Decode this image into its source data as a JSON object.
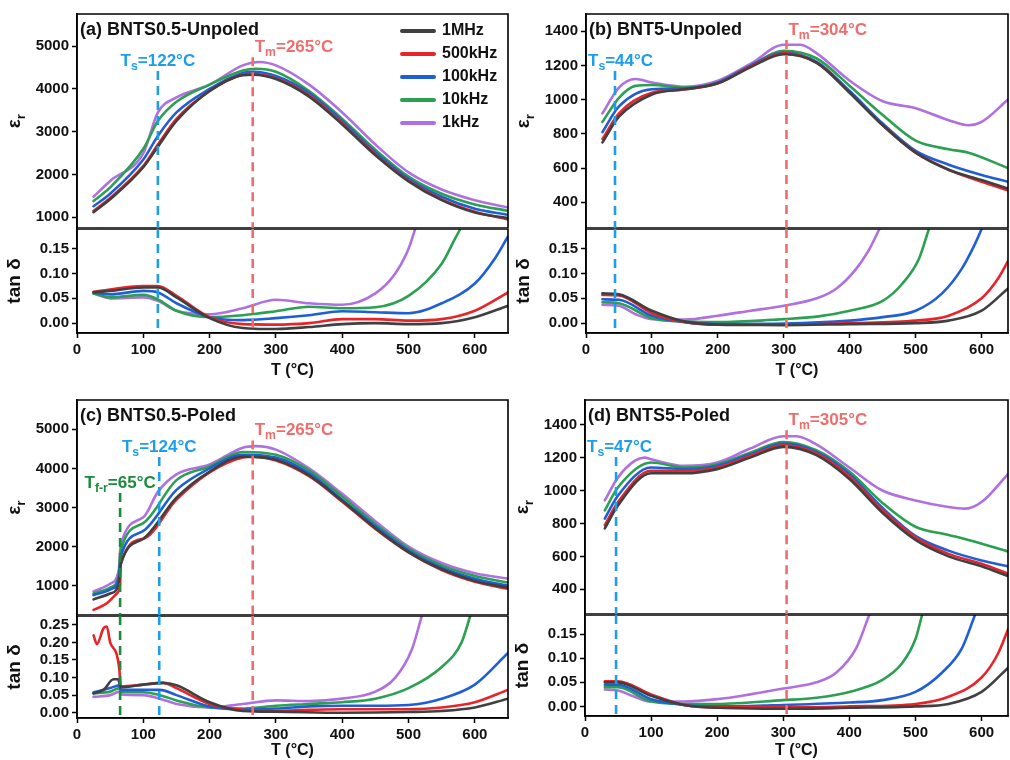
{
  "chart_data": [
    {
      "type": "line",
      "title": "(a) BNTS0.5-Unpoled",
      "ylabel": "ε$_{r}$",
      "xlim": [
        0,
        650
      ],
      "ylim": [
        750,
        5750
      ],
      "xticks": [
        0,
        100,
        200,
        300,
        400,
        500,
        600
      ],
      "yticks": [
        1000,
        2000,
        3000,
        4000,
        5000
      ],
      "tick_labels": "y",
      "marker": "none",
      "legend": "top right",
      "ref_lines": [
        {
          "axis": "x",
          "value": 122,
          "label": "T$_{s}$=122°C",
          "color": "#1e9ee8",
          "line_style": "dashed"
        },
        {
          "axis": "x",
          "value": 265,
          "label": "T$_{m}$=265°C",
          "color": "#ee6e6e",
          "line_style": "dashed"
        }
      ],
      "series": [
        {
          "name": "1MHz",
          "color": "#404040",
          "x": [
            25,
            50,
            100,
            122,
            150,
            200,
            250,
            265,
            300,
            350,
            400,
            450,
            500,
            550,
            600,
            650
          ],
          "values": [
            1120,
            1420,
            2170,
            2650,
            3250,
            3950,
            4320,
            4330,
            4230,
            3820,
            3170,
            2450,
            1840,
            1400,
            1110,
            980
          ]
        },
        {
          "name": "500kHz",
          "color": "#e8242a",
          "x": [
            25,
            50,
            100,
            122,
            150,
            200,
            250,
            265,
            300,
            350,
            400,
            450,
            500,
            550,
            600,
            650
          ],
          "values": [
            1150,
            1450,
            2200,
            2700,
            3300,
            3950,
            4330,
            4350,
            4250,
            3850,
            3200,
            2470,
            1860,
            1420,
            1130,
            950
          ]
        },
        {
          "name": "100kHz",
          "color": "#1f5fd6",
          "x": [
            25,
            50,
            100,
            122,
            150,
            200,
            250,
            265,
            300,
            350,
            400,
            450,
            500,
            550,
            600,
            650
          ],
          "values": [
            1260,
            1550,
            2350,
            2900,
            3450,
            4000,
            4370,
            4400,
            4300,
            3900,
            3250,
            2520,
            1900,
            1480,
            1200,
            1060
          ]
        },
        {
          "name": "10kHz",
          "color": "#2aa050",
          "x": [
            25,
            50,
            100,
            122,
            150,
            200,
            250,
            270,
            300,
            350,
            400,
            450,
            500,
            550,
            600,
            650
          ],
          "values": [
            1380,
            1700,
            2600,
            3250,
            3700,
            4100,
            4430,
            4470,
            4400,
            3950,
            3300,
            2580,
            1950,
            1550,
            1300,
            1150
          ]
        },
        {
          "name": "1kHz",
          "color": "#b070e0",
          "x": [
            25,
            50,
            100,
            122,
            150,
            200,
            250,
            275,
            300,
            350,
            400,
            450,
            500,
            550,
            600,
            650
          ],
          "values": [
            1480,
            1850,
            2500,
            3450,
            3800,
            4100,
            4550,
            4630,
            4550,
            4100,
            3450,
            2700,
            2050,
            1650,
            1400,
            1230
          ]
        }
      ]
    },
    {
      "type": "line",
      "xlabel": "T (°C)",
      "ylabel": "tan δ",
      "xlim": [
        0,
        650
      ],
      "ylim": [
        -0.02,
        0.19
      ],
      "xticks": [
        0,
        100,
        200,
        300,
        400,
        500,
        600
      ],
      "yticks": [
        {
          "value": 0,
          "label": "0.00"
        },
        {
          "value": 0.05,
          "label": "0.05"
        },
        {
          "value": 0.1,
          "label": "0.10"
        },
        {
          "value": 0.15,
          "label": "0.15"
        }
      ],
      "marker": "none",
      "ref_lines": [
        {
          "axis": "x",
          "value": 122,
          "color": "#1e9ee8",
          "line_style": "dashed"
        },
        {
          "axis": "x",
          "value": 265,
          "color": "#ee6e6e",
          "line_style": "dashed"
        }
      ],
      "series": [
        {
          "color": "#404040",
          "x": [
            25,
            50,
            100,
            122,
            150,
            200,
            250,
            300,
            350,
            400,
            450,
            500,
            550,
            600,
            650
          ],
          "values": [
            0.062,
            0.065,
            0.072,
            0.072,
            0.052,
            0.01,
            -0.01,
            -0.012,
            -0.008,
            -0.002,
            0.0,
            -0.002,
            0.0,
            0.012,
            0.035
          ]
        },
        {
          "color": "#e8242a",
          "x": [
            25,
            50,
            100,
            122,
            150,
            200,
            250,
            300,
            350,
            400,
            450,
            500,
            550,
            600,
            650
          ],
          "values": [
            0.063,
            0.068,
            0.075,
            0.075,
            0.055,
            0.012,
            -0.002,
            -0.003,
            0.0,
            0.008,
            0.008,
            0.005,
            0.008,
            0.025,
            0.062
          ]
        },
        {
          "color": "#1f5fd6",
          "x": [
            25,
            50,
            100,
            122,
            150,
            200,
            250,
            300,
            350,
            400,
            450,
            500,
            550,
            600,
            630,
            650
          ],
          "values": [
            0.062,
            0.058,
            0.065,
            0.062,
            0.04,
            0.012,
            0.006,
            0.01,
            0.016,
            0.024,
            0.022,
            0.02,
            0.04,
            0.08,
            0.13,
            0.175
          ]
        },
        {
          "color": "#2aa050",
          "x": [
            25,
            50,
            100,
            122,
            150,
            200,
            250,
            300,
            350,
            400,
            450,
            500,
            550,
            570,
            578
          ],
          "values": [
            0.06,
            0.052,
            0.057,
            0.048,
            0.025,
            0.012,
            0.016,
            0.024,
            0.033,
            0.03,
            0.032,
            0.055,
            0.12,
            0.17,
            0.19
          ]
        },
        {
          "color": "#b070e0",
          "x": [
            25,
            50,
            100,
            122,
            150,
            200,
            250,
            300,
            350,
            400,
            450,
            480,
            500,
            510
          ],
          "values": [
            0.06,
            0.05,
            0.052,
            0.045,
            0.025,
            0.018,
            0.03,
            0.047,
            0.04,
            0.037,
            0.06,
            0.1,
            0.15,
            0.19
          ]
        }
      ]
    },
    {
      "type": "line",
      "title": "(b) BNT5-Unpoled",
      "ylabel": "ε$_{r}$",
      "xlim": [
        0,
        640
      ],
      "ylim": [
        250,
        1500
      ],
      "xticks": [
        0,
        100,
        200,
        300,
        400,
        500,
        600
      ],
      "yticks": [
        400,
        600,
        800,
        1000,
        1200,
        1400
      ],
      "tick_labels": "y",
      "marker": "none",
      "ref_lines": [
        {
          "axis": "x",
          "value": 44,
          "label": "T$_{s}$=44°C",
          "color": "#1e9ee8",
          "line_style": "dashed"
        },
        {
          "axis": "x",
          "value": 304,
          "label": "T$_{m}$=304°C",
          "color": "#ee6e6e",
          "line_style": "dashed"
        }
      ],
      "series": [
        {
          "color": "#404040",
          "x": [
            25,
            50,
            100,
            150,
            200,
            250,
            300,
            350,
            400,
            450,
            500,
            550,
            600,
            640
          ],
          "values": [
            750,
            900,
            1030,
            1060,
            1095,
            1190,
            1265,
            1215,
            1040,
            850,
            690,
            590,
            530,
            480
          ]
        },
        {
          "color": "#e8242a",
          "x": [
            25,
            50,
            100,
            150,
            200,
            250,
            300,
            350,
            400,
            450,
            500,
            550,
            600,
            640
          ],
          "values": [
            770,
            920,
            1040,
            1060,
            1095,
            1195,
            1270,
            1215,
            1040,
            850,
            690,
            590,
            520,
            470
          ]
        },
        {
          "color": "#1f5fd6",
          "x": [
            25,
            50,
            100,
            150,
            200,
            250,
            300,
            350,
            400,
            450,
            500,
            550,
            600,
            640
          ],
          "values": [
            810,
            960,
            1060,
            1065,
            1100,
            1200,
            1275,
            1220,
            1050,
            860,
            700,
            620,
            560,
            520
          ]
        },
        {
          "color": "#2aa050",
          "x": [
            25,
            50,
            75,
            100,
            150,
            200,
            250,
            300,
            350,
            400,
            450,
            500,
            550,
            580,
            640
          ],
          "values": [
            870,
            1010,
            1080,
            1085,
            1070,
            1100,
            1200,
            1285,
            1240,
            1080,
            910,
            760,
            710,
            690,
            600
          ]
        },
        {
          "color": "#b070e0",
          "x": [
            25,
            50,
            75,
            100,
            150,
            200,
            250,
            300,
            325,
            350,
            400,
            450,
            500,
            550,
            580,
            600,
            640
          ],
          "values": [
            920,
            1070,
            1120,
            1100,
            1075,
            1110,
            1210,
            1320,
            1320,
            1270,
            1110,
            990,
            950,
            880,
            850,
            870,
            1000
          ]
        }
      ]
    },
    {
      "type": "line",
      "xlabel": "T (°C)",
      "ylabel": "tan δ",
      "xlim": [
        0,
        640
      ],
      "ylim": [
        -0.02,
        0.19
      ],
      "xticks": [
        0,
        100,
        200,
        300,
        400,
        500,
        600
      ],
      "yticks": [
        {
          "value": 0,
          "label": "0.00"
        },
        {
          "value": 0.05,
          "label": "0.05"
        },
        {
          "value": 0.1,
          "label": "0.10"
        },
        {
          "value": 0.15,
          "label": "0.15"
        }
      ],
      "marker": "none",
      "ref_lines": [
        {
          "axis": "x",
          "value": 44,
          "color": "#1e9ee8",
          "line_style": "dashed"
        },
        {
          "axis": "x",
          "value": 304,
          "color": "#ee6e6e",
          "line_style": "dashed"
        }
      ],
      "series": [
        {
          "color": "#404040",
          "x": [
            25,
            50,
            100,
            150,
            200,
            300,
            400,
            500,
            550,
            600,
            640
          ],
          "values": [
            0.06,
            0.058,
            0.025,
            0.003,
            -0.003,
            -0.004,
            -0.002,
            0.0,
            0.005,
            0.025,
            0.07
          ]
        },
        {
          "color": "#e8242a",
          "x": [
            25,
            50,
            100,
            150,
            200,
            300,
            400,
            500,
            550,
            600,
            625,
            640
          ],
          "values": [
            0.057,
            0.056,
            0.02,
            0.002,
            -0.003,
            -0.003,
            0.0,
            0.005,
            0.015,
            0.05,
            0.09,
            0.125
          ]
        },
        {
          "color": "#1f5fd6",
          "x": [
            25,
            50,
            100,
            150,
            200,
            300,
            400,
            450,
            500,
            540,
            570,
            590,
            600
          ],
          "values": [
            0.048,
            0.047,
            0.015,
            0.002,
            -0.002,
            -0.001,
            0.005,
            0.012,
            0.025,
            0.06,
            0.11,
            0.16,
            0.19
          ]
        },
        {
          "color": "#2aa050",
          "x": [
            25,
            50,
            100,
            150,
            200,
            300,
            350,
            400,
            450,
            480,
            505,
            520
          ],
          "values": [
            0.042,
            0.04,
            0.01,
            0.003,
            0.002,
            0.008,
            0.013,
            0.025,
            0.045,
            0.08,
            0.13,
            0.19
          ]
        },
        {
          "color": "#b070e0",
          "x": [
            25,
            50,
            75,
            100,
            150,
            200,
            250,
            300,
            350,
            380,
            410,
            430,
            445
          ],
          "values": [
            0.037,
            0.035,
            0.018,
            0.008,
            0.007,
            0.015,
            0.025,
            0.035,
            0.05,
            0.07,
            0.11,
            0.15,
            0.19
          ]
        }
      ]
    },
    {
      "type": "line",
      "title": "(c) BNTS0.5-Poled",
      "ylabel": "ε$_{r}$",
      "xlim": [
        0,
        650
      ],
      "ylim": [
        250,
        5750
      ],
      "xticks": [
        0,
        100,
        200,
        300,
        400,
        500,
        600
      ],
      "yticks": [
        1000,
        2000,
        3000,
        4000,
        5000
      ],
      "tick_labels": "y",
      "marker": "none",
      "ref_lines": [
        {
          "axis": "x",
          "value": 65,
          "label": "T$_{f-r}$=65°C",
          "color": "#1d8a3c",
          "line_style": "dashed"
        },
        {
          "axis": "x",
          "value": 124,
          "label": "T$_{s}$=124°C",
          "color": "#1e9ee8",
          "line_style": "dashed"
        },
        {
          "axis": "x",
          "value": 265,
          "label": "T$_{m}$=265°C",
          "color": "#ee6e6e",
          "line_style": "dashed"
        }
      ],
      "series": [
        {
          "color": "#404040",
          "x": [
            25,
            50,
            63,
            66,
            100,
            150,
            200,
            250,
            300,
            350,
            400,
            450,
            500,
            550,
            600,
            650
          ],
          "values": [
            650,
            800,
            1050,
            1550,
            2200,
            3250,
            3920,
            4300,
            4220,
            3820,
            3170,
            2470,
            1860,
            1420,
            1120,
            950
          ]
        },
        {
          "color": "#e8242a",
          "x": [
            25,
            45,
            60,
            65,
            66,
            100,
            150,
            200,
            250,
            265,
            300,
            350,
            400,
            450,
            500,
            550,
            600,
            650
          ],
          "values": [
            380,
            550,
            800,
            1050,
            1550,
            2200,
            3200,
            3900,
            4280,
            4300,
            4200,
            3800,
            3150,
            2450,
            1850,
            1400,
            1100,
            920
          ]
        },
        {
          "color": "#1f5fd6",
          "x": [
            25,
            50,
            63,
            66,
            100,
            150,
            200,
            250,
            300,
            350,
            400,
            450,
            500,
            550,
            600,
            650
          ],
          "values": [
            760,
            900,
            1200,
            1750,
            2400,
            3450,
            4000,
            4350,
            4280,
            3880,
            3200,
            2520,
            1900,
            1460,
            1180,
            1000
          ]
        },
        {
          "color": "#2aa050",
          "x": [
            25,
            50,
            63,
            66,
            100,
            150,
            200,
            250,
            300,
            350,
            400,
            450,
            500,
            550,
            600,
            650
          ],
          "values": [
            800,
            950,
            1250,
            1900,
            2600,
            3700,
            4050,
            4420,
            4350,
            3950,
            3280,
            2580,
            1950,
            1520,
            1250,
            1080
          ]
        },
        {
          "color": "#b070e0",
          "x": [
            25,
            50,
            63,
            66,
            100,
            122,
            150,
            200,
            250,
            270,
            300,
            350,
            400,
            450,
            500,
            550,
            600,
            650
          ],
          "values": [
            850,
            1050,
            1400,
            2050,
            2750,
            3400,
            3850,
            4100,
            4530,
            4570,
            4480,
            4000,
            3350,
            2650,
            2000,
            1580,
            1320,
            1180
          ]
        }
      ]
    },
    {
      "type": "line",
      "xlabel": "T (°C)",
      "ylabel": "tan δ",
      "xlim": [
        0,
        650
      ],
      "ylim": [
        -0.015,
        0.275
      ],
      "xticks": [
        0,
        100,
        200,
        300,
        400,
        500,
        600
      ],
      "yticks": [
        {
          "value": 0,
          "label": "0.00"
        },
        {
          "value": 0.05,
          "label": "0.05"
        },
        {
          "value": 0.1,
          "label": "0.10"
        },
        {
          "value": 0.15,
          "label": "0.15"
        },
        {
          "value": 0.2,
          "label": "0.20"
        },
        {
          "value": 0.25,
          "label": "0.25"
        }
      ],
      "marker": "none",
      "ref_lines": [
        {
          "axis": "x",
          "value": 65,
          "color": "#1d8a3c",
          "line_style": "dashed"
        },
        {
          "axis": "x",
          "value": 124,
          "color": "#1e9ee8",
          "line_style": "dashed"
        },
        {
          "axis": "x",
          "value": 265,
          "color": "#ee6e6e",
          "line_style": "dashed"
        }
      ],
      "series": [
        {
          "color": "#404040",
          "x": [
            25,
            40,
            55,
            62,
            66,
            100,
            130,
            150,
            200,
            250,
            300,
            400,
            500,
            550,
            600,
            650
          ],
          "values": [
            0.055,
            0.065,
            0.095,
            0.095,
            0.072,
            0.08,
            0.085,
            0.078,
            0.03,
            0.005,
            0.003,
            0.0,
            0.002,
            0.005,
            0.015,
            0.04
          ]
        },
        {
          "color": "#e8242a",
          "x": [
            25,
            30,
            40,
            45,
            50,
            60,
            64,
            66,
            100,
            130,
            150,
            200,
            250,
            300,
            350,
            400,
            450,
            500,
            550,
            600,
            650
          ],
          "values": [
            0.22,
            0.195,
            0.24,
            0.245,
            0.2,
            0.165,
            0.12,
            0.075,
            0.08,
            0.085,
            0.07,
            0.025,
            0.008,
            0.005,
            0.008,
            0.01,
            0.01,
            0.01,
            0.015,
            0.03,
            0.065
          ]
        },
        {
          "color": "#1f5fd6",
          "x": [
            25,
            50,
            64,
            66,
            100,
            125,
            150,
            200,
            250,
            300,
            350,
            400,
            450,
            500,
            550,
            600,
            650
          ],
          "values": [
            0.058,
            0.07,
            0.078,
            0.065,
            0.065,
            0.065,
            0.05,
            0.018,
            0.01,
            0.012,
            0.018,
            0.02,
            0.02,
            0.022,
            0.04,
            0.08,
            0.17
          ]
        },
        {
          "color": "#2aa050",
          "x": [
            25,
            50,
            64,
            66,
            100,
            125,
            150,
            200,
            250,
            300,
            350,
            400,
            450,
            500,
            550,
            580,
            593
          ],
          "values": [
            0.055,
            0.06,
            0.07,
            0.058,
            0.058,
            0.05,
            0.035,
            0.015,
            0.012,
            0.02,
            0.025,
            0.03,
            0.04,
            0.07,
            0.13,
            0.2,
            0.275
          ]
        },
        {
          "color": "#b070e0",
          "x": [
            25,
            50,
            64,
            66,
            100,
            125,
            150,
            200,
            250,
            300,
            350,
            400,
            450,
            480,
            505,
            520
          ],
          "values": [
            0.045,
            0.05,
            0.06,
            0.052,
            0.05,
            0.04,
            0.025,
            0.015,
            0.025,
            0.035,
            0.033,
            0.04,
            0.06,
            0.1,
            0.18,
            0.275
          ]
        }
      ]
    },
    {
      "type": "line",
      "title": "(d) BNTS5-Poled",
      "ylabel": "ε$_{r}$",
      "xlim": [
        0,
        640
      ],
      "ylim": [
        250,
        1550
      ],
      "xticks": [
        0,
        100,
        200,
        300,
        400,
        500,
        600
      ],
      "yticks": [
        400,
        600,
        800,
        1000,
        1200,
        1400
      ],
      "tick_labels": "y",
      "marker": "none",
      "ref_lines": [
        {
          "axis": "x",
          "value": 47,
          "label": "T$_{s}$=47°C",
          "color": "#1e9ee8",
          "line_style": "dashed"
        },
        {
          "axis": "x",
          "value": 305,
          "label": "T$_{m}$=305°C",
          "color": "#ee6e6e",
          "line_style": "dashed"
        }
      ],
      "series": [
        {
          "color": "#404040",
          "x": [
            30,
            50,
            100,
            150,
            200,
            250,
            300,
            350,
            400,
            450,
            500,
            550,
            600,
            640
          ],
          "values": [
            770,
            910,
            1105,
            1105,
            1130,
            1200,
            1265,
            1215,
            1070,
            865,
            700,
            600,
            540,
            480
          ]
        },
        {
          "color": "#e8242a",
          "x": [
            30,
            50,
            100,
            150,
            200,
            250,
            300,
            350,
            400,
            450,
            500,
            550,
            600,
            640
          ],
          "values": [
            790,
            930,
            1120,
            1120,
            1140,
            1210,
            1275,
            1225,
            1085,
            880,
            715,
            615,
            555,
            495
          ]
        },
        {
          "color": "#1f5fd6",
          "x": [
            30,
            50,
            100,
            150,
            200,
            250,
            300,
            350,
            400,
            450,
            500,
            550,
            600,
            640
          ],
          "values": [
            830,
            970,
            1140,
            1130,
            1150,
            1220,
            1285,
            1235,
            1100,
            895,
            725,
            635,
            575,
            540
          ]
        },
        {
          "color": "#2aa050",
          "x": [
            30,
            50,
            100,
            150,
            200,
            250,
            300,
            350,
            400,
            450,
            500,
            550,
            580,
            640
          ],
          "values": [
            880,
            1020,
            1170,
            1140,
            1160,
            1230,
            1295,
            1245,
            1115,
            925,
            780,
            730,
            700,
            630
          ]
        },
        {
          "color": "#b070e0",
          "x": [
            30,
            50,
            75,
            90,
            100,
            150,
            200,
            250,
            300,
            320,
            350,
            400,
            450,
            500,
            550,
            575,
            600,
            640
          ],
          "values": [
            940,
            1080,
            1180,
            1200,
            1190,
            1150,
            1170,
            1255,
            1330,
            1330,
            1280,
            1140,
            1000,
            940,
            900,
            890,
            930,
            1100
          ]
        }
      ]
    },
    {
      "type": "line",
      "xlabel": "T (°C)",
      "ylabel": "tan δ",
      "xlim": [
        0,
        640
      ],
      "ylim": [
        -0.02,
        0.19
      ],
      "xticks": [
        0,
        100,
        200,
        300,
        400,
        500,
        600
      ],
      "yticks": [
        {
          "value": 0,
          "label": "0.00"
        },
        {
          "value": 0.05,
          "label": "0.05"
        },
        {
          "value": 0.1,
          "label": "0.10"
        },
        {
          "value": 0.15,
          "label": "0.15"
        }
      ],
      "marker": "none",
      "ref_lines": [
        {
          "axis": "x",
          "value": 47,
          "color": "#1e9ee8",
          "line_style": "dashed"
        },
        {
          "axis": "x",
          "value": 305,
          "color": "#ee6e6e",
          "line_style": "dashed"
        }
      ],
      "series": [
        {
          "color": "#404040",
          "x": [
            30,
            50,
            100,
            150,
            200,
            300,
            400,
            500,
            550,
            600,
            640
          ],
          "values": [
            0.05,
            0.05,
            0.022,
            0.003,
            -0.003,
            -0.005,
            -0.003,
            0.0,
            0.005,
            0.03,
            0.08
          ]
        },
        {
          "color": "#e8242a",
          "x": [
            30,
            50,
            100,
            150,
            200,
            300,
            400,
            500,
            550,
            600,
            625,
            640
          ],
          "values": [
            0.052,
            0.052,
            0.025,
            0.003,
            -0.002,
            -0.002,
            0.0,
            0.005,
            0.02,
            0.06,
            0.11,
            0.16
          ]
        },
        {
          "color": "#1f5fd6",
          "x": [
            30,
            50,
            100,
            150,
            200,
            300,
            400,
            450,
            500,
            540,
            570,
            590
          ],
          "values": [
            0.045,
            0.045,
            0.015,
            0.003,
            0.0,
            0.003,
            0.008,
            0.013,
            0.03,
            0.07,
            0.12,
            0.19
          ]
        },
        {
          "color": "#2aa050",
          "x": [
            30,
            50,
            100,
            150,
            200,
            300,
            350,
            400,
            450,
            480,
            500,
            510
          ],
          "values": [
            0.04,
            0.04,
            0.01,
            0.005,
            0.005,
            0.013,
            0.018,
            0.03,
            0.055,
            0.09,
            0.14,
            0.19
          ]
        },
        {
          "color": "#b070e0",
          "x": [
            30,
            50,
            75,
            100,
            150,
            200,
            250,
            300,
            350,
            380,
            410,
            430
          ],
          "values": [
            0.035,
            0.033,
            0.02,
            0.01,
            0.01,
            0.015,
            0.025,
            0.037,
            0.05,
            0.07,
            0.12,
            0.19
          ]
        }
      ]
    }
  ]
}
